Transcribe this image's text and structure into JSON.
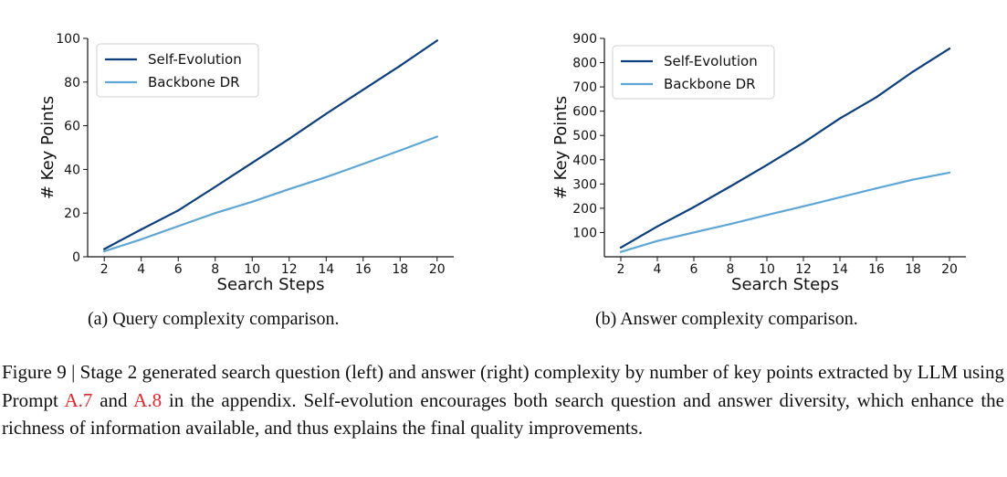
{
  "chart_data": [
    {
      "type": "line",
      "xlabel": "Search Steps",
      "ylabel": "# Key Points",
      "x": [
        2,
        4,
        6,
        8,
        10,
        12,
        14,
        16,
        18,
        20
      ],
      "xticks": [
        2,
        4,
        6,
        8,
        10,
        12,
        14,
        16,
        18,
        20
      ],
      "yticks": [
        0,
        20,
        40,
        60,
        80,
        100
      ],
      "xlim": [
        1.1,
        20.9
      ],
      "ylim": [
        0,
        100
      ],
      "grid": false,
      "legend_position": "top-left",
      "series": [
        {
          "name": "Self-Evolution",
          "color": "#0d3f7e",
          "values": [
            3.5,
            12.5,
            21.2,
            32.0,
            43.0,
            54.0,
            65.5,
            76.5,
            87.5,
            99.0
          ]
        },
        {
          "name": "Backbone DR",
          "color": "#5ea6d6",
          "values": [
            2.5,
            8.0,
            14.0,
            20.0,
            25.2,
            31.0,
            36.5,
            42.5,
            48.7,
            55.0
          ]
        }
      ]
    },
    {
      "type": "line",
      "xlabel": "Search Steps",
      "ylabel": "# Key Points",
      "x": [
        2,
        4,
        6,
        8,
        10,
        12,
        14,
        16,
        18,
        20
      ],
      "xticks": [
        2,
        4,
        6,
        8,
        10,
        12,
        14,
        16,
        18,
        20
      ],
      "yticks": [
        100,
        200,
        300,
        400,
        500,
        600,
        700,
        800,
        900
      ],
      "xlim": [
        1.1,
        20.9
      ],
      "ylim": [
        0,
        900
      ],
      "grid": false,
      "legend_position": "top-left",
      "series": [
        {
          "name": "Self-Evolution",
          "color": "#0d3f7e",
          "values": [
            38,
            125,
            205,
            290,
            378,
            470,
            570,
            658,
            763,
            858
          ]
        },
        {
          "name": "Backbone DR",
          "color": "#5ea6d6",
          "values": [
            20,
            65,
            100,
            135,
            172,
            208,
            245,
            282,
            318,
            347
          ]
        }
      ]
    }
  ],
  "subcaptions": {
    "a": "(a) Query complexity comparison.",
    "b": "(b) Answer complexity comparison."
  },
  "caption": {
    "part1": "Figure 9 | Stage 2 generated search question (left) and answer (right) complexity by number of key points extracted by LLM using Prompt ",
    "ref1": "A.7",
    "part2": " and ",
    "ref2": "A.8",
    "part3": " in the appendix. Self-evolution encourages both search question and answer diversity, which enhance the richness of information available, and thus explains the final quality improvements."
  }
}
